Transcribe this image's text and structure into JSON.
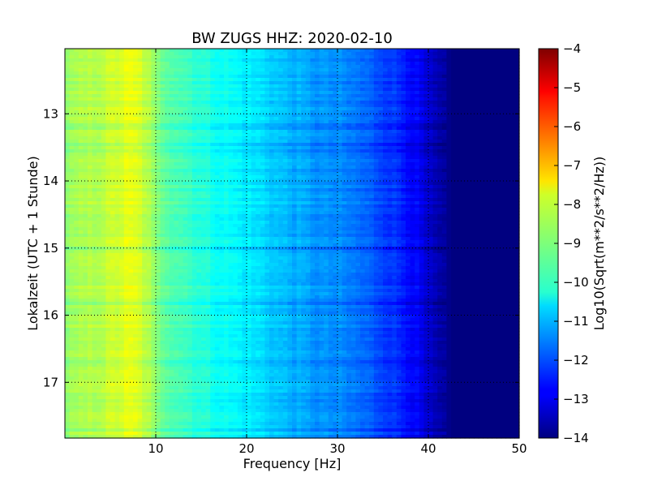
{
  "chart_data": {
    "type": "heatmap",
    "title": "BW ZUGS HHZ: 2020-02-10",
    "xlabel": "Frequency [Hz]",
    "ylabel": "Lokalzeit (UTC + 1 Stunde)",
    "xlim": [
      0,
      50
    ],
    "ylim": [
      12.03,
      17.83
    ],
    "y_inverted": true,
    "x_ticks": [
      10,
      20,
      30,
      40,
      50
    ],
    "y_ticks": [
      13,
      14,
      15,
      16,
      17
    ],
    "grid": true,
    "colorbar": {
      "label": "Log10(Sqrt(m**2/s**2/Hz))",
      "range": [
        -14,
        -4
      ],
      "ticks": [
        -4,
        -5,
        -6,
        -7,
        -8,
        -9,
        -10,
        -11,
        -12,
        -13,
        -14
      ],
      "colormap": "jet"
    },
    "spectrum_profile": {
      "freq_hz": [
        0,
        3,
        5,
        7,
        8,
        9,
        10,
        12,
        14,
        16,
        18,
        20,
        22,
        24,
        26,
        28,
        30,
        32,
        34,
        36,
        38,
        39,
        40,
        41,
        42,
        42.5,
        50
      ],
      "log_value": [
        -8.8,
        -8.5,
        -8.3,
        -8.0,
        -8.1,
        -8.4,
        -9.0,
        -9.4,
        -9.7,
        -10.0,
        -10.2,
        -10.4,
        -10.6,
        -10.9,
        -11.1,
        -11.3,
        -11.4,
        -11.6,
        -11.9,
        -12.2,
        -12.6,
        -12.9,
        -13.3,
        -13.6,
        -13.8,
        -14.0,
        -14.0
      ]
    }
  }
}
